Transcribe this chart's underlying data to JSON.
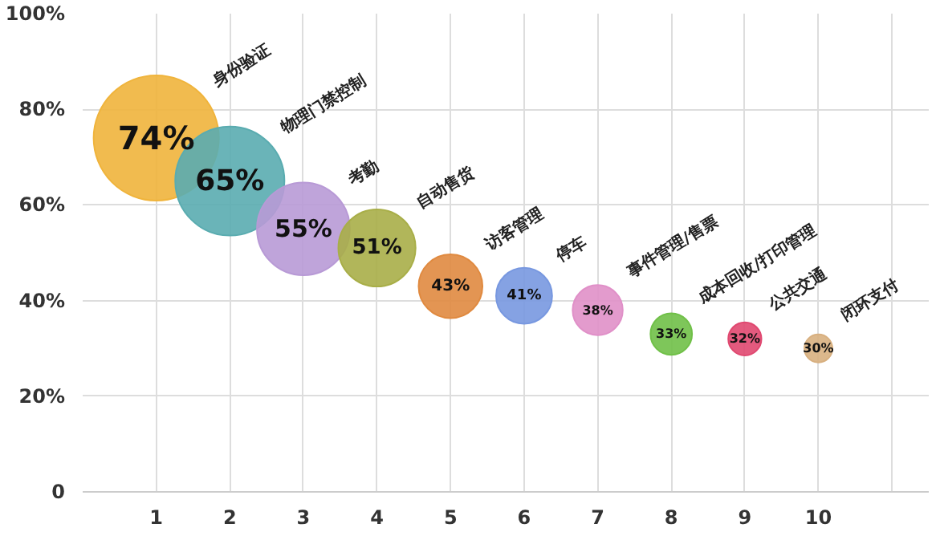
{
  "chart_data": {
    "type": "bubble",
    "x": [
      1,
      2,
      3,
      4,
      5,
      6,
      7,
      8,
      9,
      10
    ],
    "values": [
      74,
      65,
      55,
      51,
      43,
      41,
      38,
      33,
      32,
      30
    ],
    "sizes": [
      1,
      0.76,
      0.55,
      0.38,
      0.26,
      0.2,
      0.16,
      0.11,
      0.07,
      0.05
    ],
    "colors": [
      "#f0b43c",
      "#5aacb0",
      "#b89ad6",
      "#a8ae48",
      "#e08a40",
      "#7898e0",
      "#e090c8",
      "#70c048",
      "#e04870",
      "#d8b080"
    ],
    "value_labels": [
      "74%",
      "65%",
      "55%",
      "51%",
      "43%",
      "41%",
      "38%",
      "33%",
      "32%",
      "30%"
    ],
    "annotations": [
      "身份验证",
      "物理门禁控制",
      "考勤",
      "自动售货",
      "访客管理",
      "停车",
      "事件管理/售票",
      "成本回收/打印管理",
      "公共交通",
      "闭环支付"
    ],
    "xlim": [
      0,
      11.5
    ],
    "xticks": [
      1,
      2,
      3,
      4,
      5,
      6,
      7,
      8,
      9,
      10,
      {
        "value": 11,
        "label": null
      }
    ],
    "ylim": [
      0,
      100
    ],
    "yticks": [
      {
        "value": 0,
        "label": "0"
      },
      {
        "value": 20,
        "label": "20%"
      },
      {
        "value": 40,
        "label": "40%"
      },
      {
        "value": 60,
        "label": "60%"
      },
      {
        "value": 80,
        "label": "80%"
      },
      {
        "value": 100,
        "label": "100%"
      }
    ],
    "grid": true
  }
}
